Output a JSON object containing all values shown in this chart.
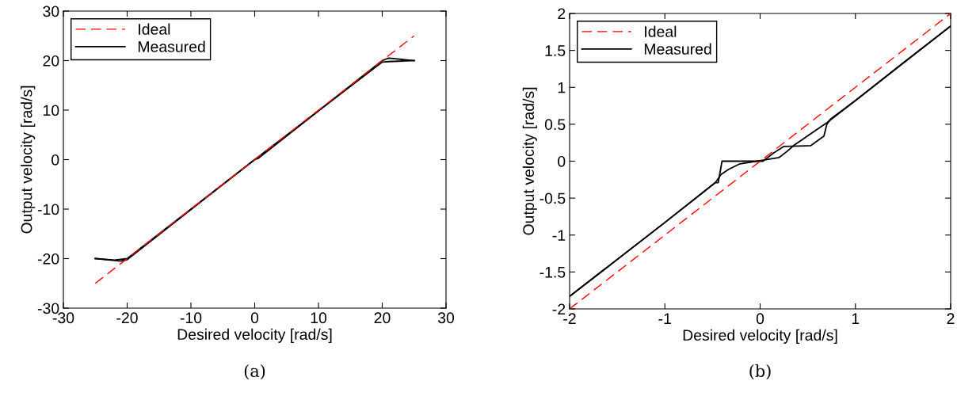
{
  "chart_data": [
    {
      "type": "line",
      "xlabel": "Desired velocity [rad/s]",
      "ylabel": "Output velocity [rad/s]",
      "xlim": [
        -30,
        30
      ],
      "ylim": [
        -30,
        30
      ],
      "xticks": [
        -30,
        -20,
        -10,
        0,
        10,
        20,
        30
      ],
      "yticks": [
        -30,
        -20,
        -10,
        0,
        10,
        20,
        30
      ],
      "grid": false,
      "legend": "top left",
      "annotations": [
        "(a)"
      ],
      "series": [
        {
          "name": "Ideal",
          "color": "#ff0000",
          "line_style": "dashed",
          "x": [
            -25,
            25
          ],
          "values": [
            -25,
            25
          ]
        },
        {
          "name": "Measured",
          "color": "#000000",
          "line_style": "solid",
          "x": [
            -25,
            -22,
            -20,
            0,
            0.5,
            20,
            21,
            25
          ],
          "values": [
            -20,
            -20.3,
            -20,
            0,
            0.2,
            20,
            20.5,
            20
          ]
        },
        {
          "color": "#000000",
          "line_style": "solid",
          "x": [
            -25,
            -21,
            -20,
            0,
            20,
            21,
            25
          ],
          "values": [
            -20,
            -20.5,
            -20.2,
            0,
            19.7,
            19.8,
            20
          ]
        }
      ]
    },
    {
      "type": "line",
      "xlabel": "Desired velocity [rad/s]",
      "ylabel": "Output velocity [rad/s]",
      "xlim": [
        -2,
        2
      ],
      "ylim": [
        -2,
        2
      ],
      "xticks": [
        -2,
        -1,
        0,
        1,
        2
      ],
      "yticks": [
        -2,
        -1.5,
        -1,
        -0.5,
        0,
        0.5,
        1,
        1.5,
        2
      ],
      "grid": false,
      "legend": "top left",
      "annotations": [
        "(b)"
      ],
      "series": [
        {
          "name": "Ideal",
          "color": "#ff0000",
          "line_style": "dashed",
          "x": [
            -2,
            2
          ],
          "values": [
            -2,
            2
          ]
        },
        {
          "name": "Measured",
          "color": "#000000",
          "line_style": "solid",
          "x": [
            -2,
            -1,
            -0.47,
            -0.44,
            -0.4,
            0.03,
            0.14,
            0.25,
            0.53,
            0.67,
            0.7,
            0.74,
            1,
            1.5,
            2
          ],
          "values": [
            -1.83,
            -0.83,
            -0.29,
            -0.29,
            0,
            0,
            0.11,
            0.2,
            0.21,
            0.34,
            0.5,
            0.57,
            0.82,
            1.33,
            1.83
          ]
        },
        {
          "color": "#000000",
          "line_style": "solid",
          "x": [
            -2,
            -1,
            -0.47,
            -0.41,
            -0.33,
            -0.22,
            0.06,
            0.2,
            0.28,
            0.36,
            0.7,
            1,
            2
          ],
          "values": [
            -1.83,
            -0.83,
            -0.29,
            -0.18,
            -0.11,
            -0.04,
            0.02,
            0.05,
            0.13,
            0.22,
            0.52,
            0.82,
            1.83
          ]
        }
      ]
    }
  ]
}
